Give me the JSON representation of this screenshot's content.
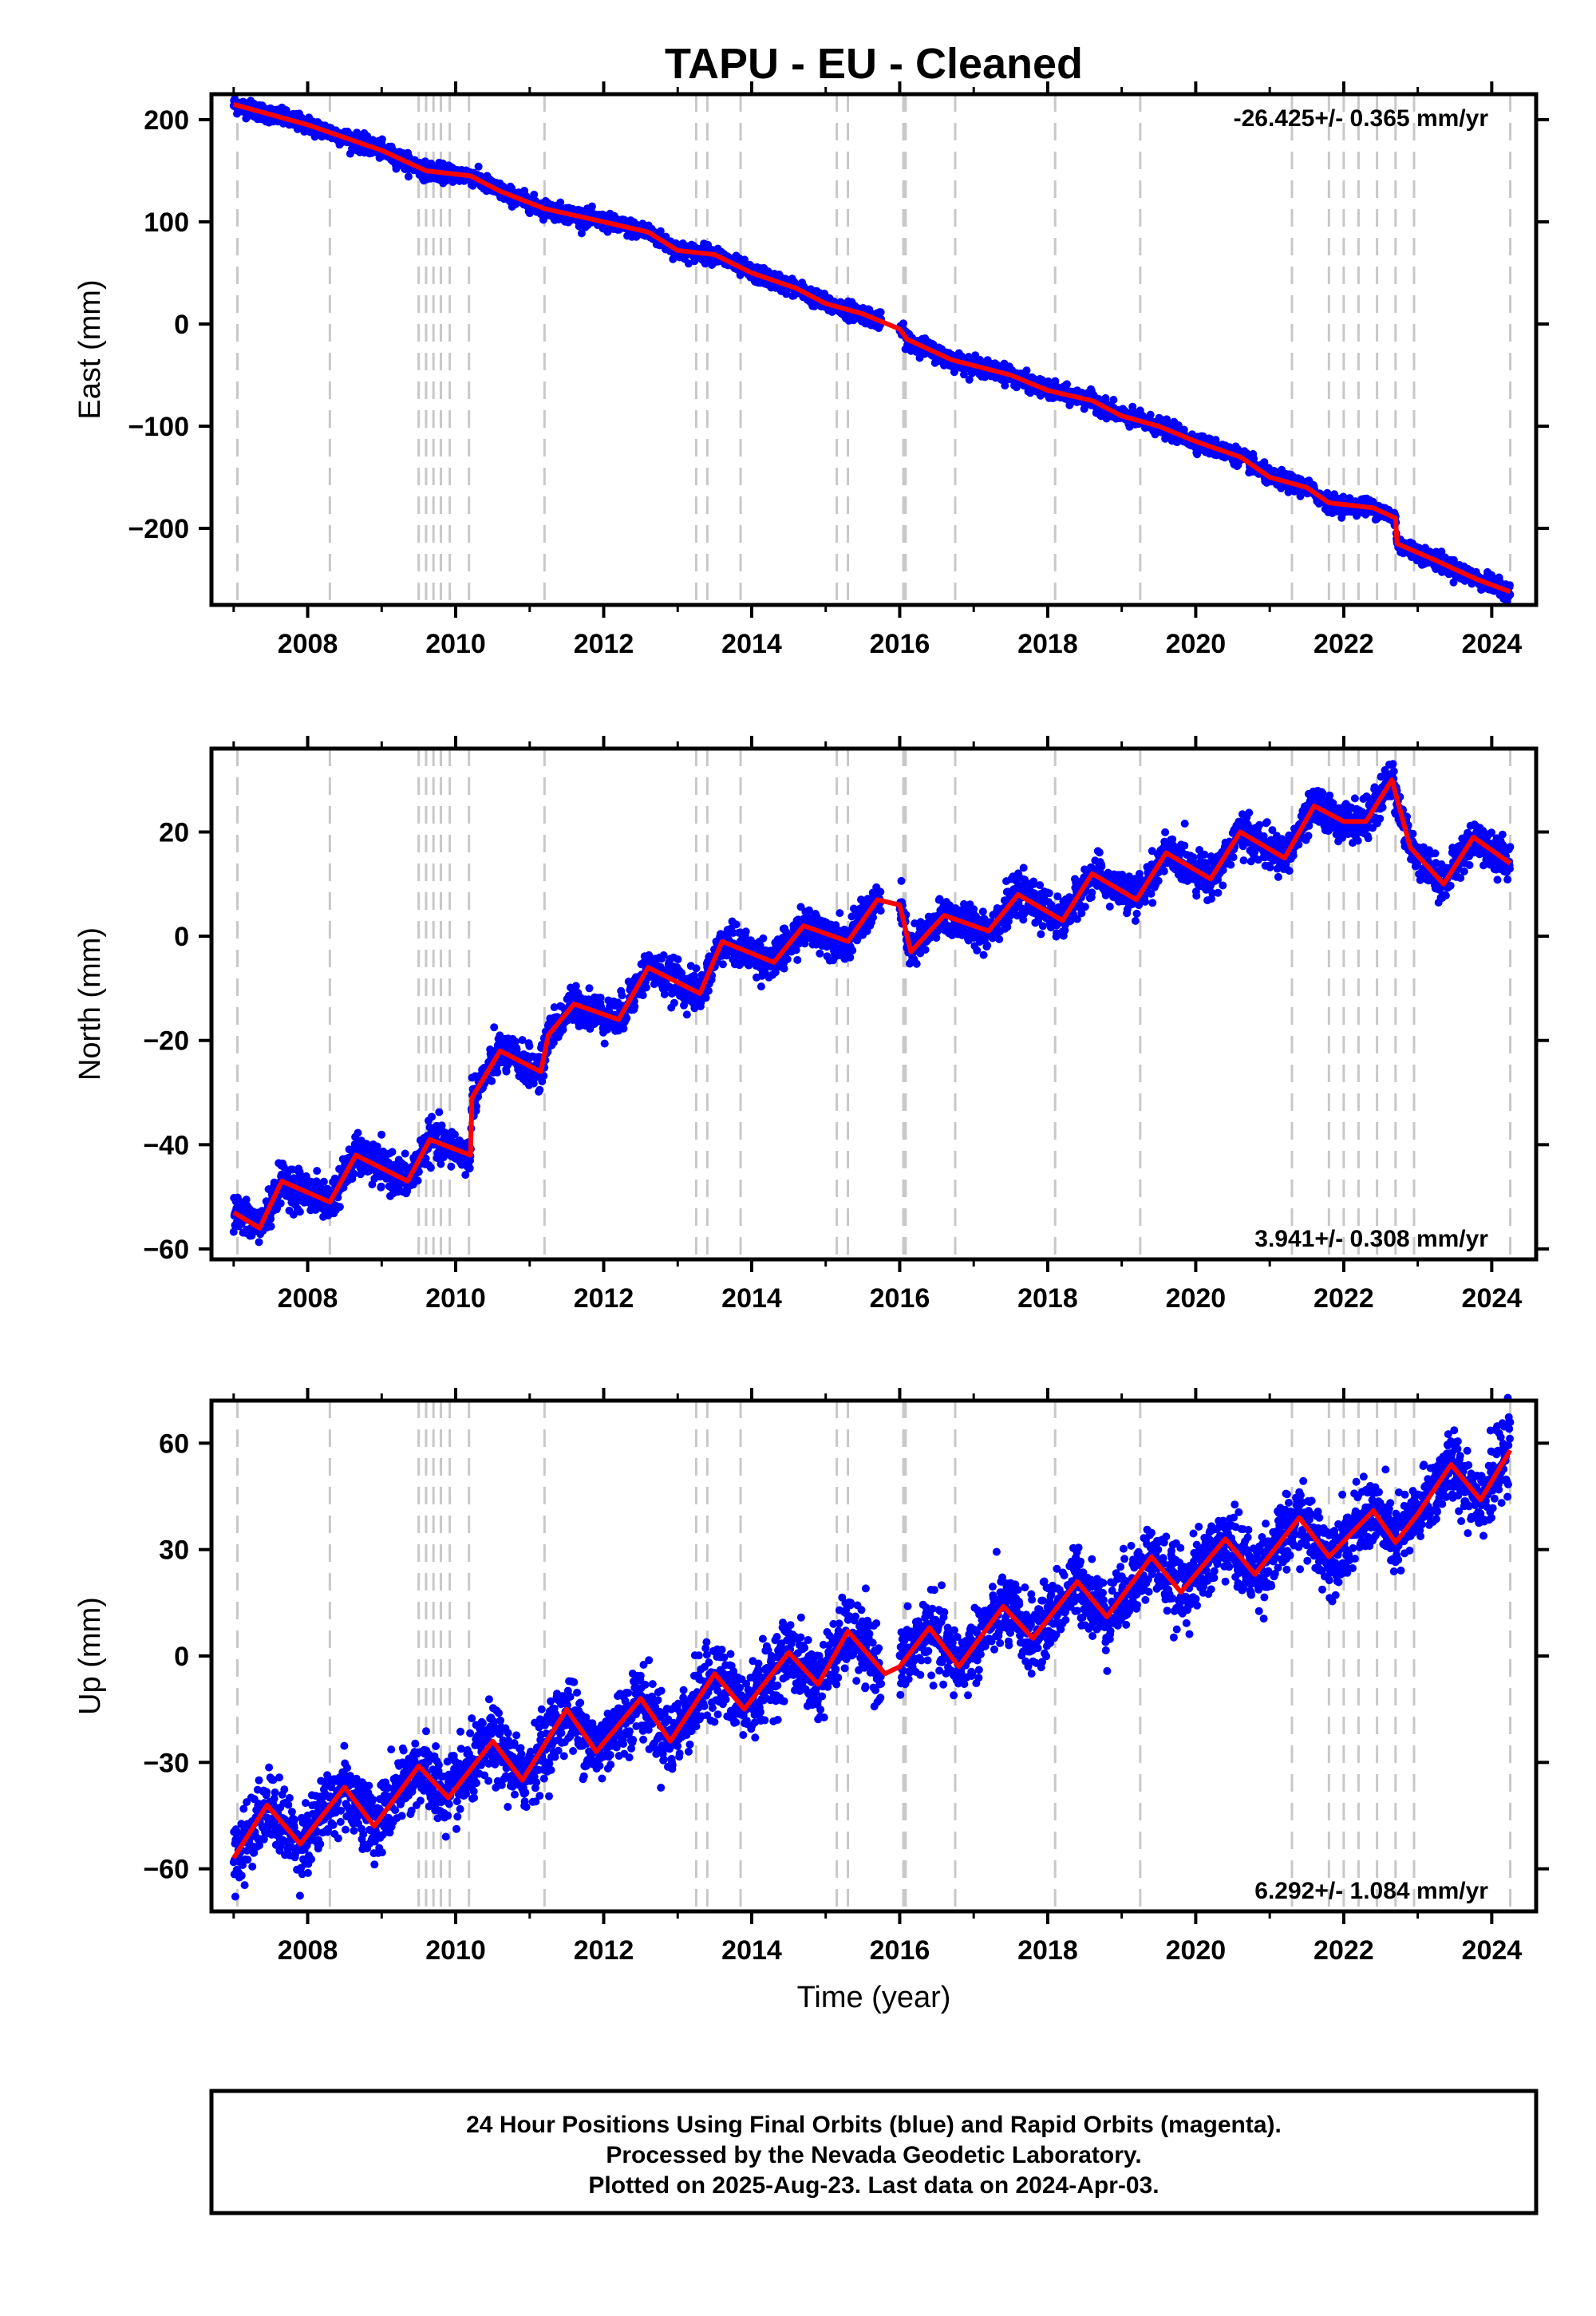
{
  "title": "TAPU  - EU - Cleaned",
  "xlabel": "Time (year)",
  "footer": {
    "line1": "24 Hour Positions Using Final Orbits (blue) and Rapid Orbits (magenta).",
    "line2": "Processed by the Nevada Geodetic Laboratory.",
    "line3": "Plotted on 2025-Aug-23. Last data on 2024-Apr-03."
  },
  "colors": {
    "points": "#0000ff",
    "model": "#ff0000",
    "events": "#c8c8c8",
    "frame": "#000000"
  },
  "chart_data": [
    {
      "type": "scatter",
      "name_component": "East",
      "ylabel": "East (mm)",
      "rate_label": "-26.425+/- 0.365 mm/yr",
      "xlim": [
        2006.7,
        2024.6
      ],
      "ylim": [
        -275,
        225
      ],
      "yticks": [
        -200,
        -100,
        0,
        100,
        200
      ],
      "xticks": [
        2008,
        2010,
        2012,
        2014,
        2016,
        2018,
        2020,
        2022,
        2024
      ],
      "model_series": [
        [
          2007.0,
          215
        ],
        [
          2008.0,
          195
        ],
        [
          2009.0,
          170
        ],
        [
          2009.6,
          150
        ],
        [
          2010.2,
          145
        ],
        [
          2010.6,
          130
        ],
        [
          2011.2,
          113
        ],
        [
          2012.0,
          100
        ],
        [
          2012.6,
          90
        ],
        [
          2013.0,
          72
        ],
        [
          2013.5,
          68
        ],
        [
          2014.0,
          50
        ],
        [
          2014.6,
          35
        ],
        [
          2015.0,
          20
        ],
        [
          2015.5,
          10
        ],
        [
          2016.0,
          -5
        ],
        [
          2016.1,
          -15
        ],
        [
          2016.7,
          -35
        ],
        [
          2017.5,
          -50
        ],
        [
          2018.0,
          -65
        ],
        [
          2018.6,
          -75
        ],
        [
          2019.0,
          -90
        ],
        [
          2019.5,
          -100
        ],
        [
          2020.0,
          -115
        ],
        [
          2020.6,
          -130
        ],
        [
          2021.0,
          -150
        ],
        [
          2021.5,
          -160
        ],
        [
          2021.8,
          -175
        ],
        [
          2022.4,
          -180
        ],
        [
          2022.7,
          -190
        ],
        [
          2022.72,
          -215
        ],
        [
          2023.2,
          -230
        ],
        [
          2023.8,
          -250
        ],
        [
          2024.25,
          -262
        ]
      ],
      "scatter_noise": 4
    },
    {
      "type": "scatter",
      "name_component": "North",
      "ylabel": "North (mm)",
      "rate_label": "3.941+/- 0.308 mm/yr",
      "xlim": [
        2006.7,
        2024.6
      ],
      "ylim": [
        -62,
        36
      ],
      "yticks": [
        -60,
        -40,
        -20,
        0,
        20
      ],
      "xticks": [
        2008,
        2010,
        2012,
        2014,
        2016,
        2018,
        2020,
        2022,
        2024
      ],
      "model_series": [
        [
          2007.0,
          -53
        ],
        [
          2007.35,
          -56
        ],
        [
          2007.65,
          -47
        ],
        [
          2008.3,
          -51
        ],
        [
          2008.65,
          -42
        ],
        [
          2009.35,
          -47
        ],
        [
          2009.65,
          -39
        ],
        [
          2010.2,
          -42
        ],
        [
          2010.22,
          -31
        ],
        [
          2010.6,
          -22
        ],
        [
          2011.15,
          -26
        ],
        [
          2011.25,
          -19
        ],
        [
          2011.6,
          -13
        ],
        [
          2012.2,
          -16
        ],
        [
          2012.6,
          -6
        ],
        [
          2013.3,
          -11
        ],
        [
          2013.6,
          -1
        ],
        [
          2014.3,
          -5
        ],
        [
          2014.7,
          2
        ],
        [
          2015.3,
          -1
        ],
        [
          2015.7,
          7
        ],
        [
          2016.0,
          6
        ],
        [
          2016.15,
          -3
        ],
        [
          2016.6,
          4
        ],
        [
          2017.2,
          1
        ],
        [
          2017.6,
          8
        ],
        [
          2018.2,
          3
        ],
        [
          2018.6,
          12
        ],
        [
          2019.2,
          7
        ],
        [
          2019.6,
          16
        ],
        [
          2020.2,
          11
        ],
        [
          2020.6,
          20
        ],
        [
          2021.2,
          15
        ],
        [
          2021.6,
          25
        ],
        [
          2022.0,
          22
        ],
        [
          2022.3,
          22
        ],
        [
          2022.65,
          30
        ],
        [
          2022.9,
          17
        ],
        [
          2023.35,
          10
        ],
        [
          2023.75,
          19
        ],
        [
          2024.25,
          14
        ]
      ],
      "scatter_noise": 1.8
    },
    {
      "type": "scatter",
      "name_component": "Up",
      "ylabel": "Up (mm)",
      "rate_label": "6.292+/- 1.084 mm/yr",
      "xlim": [
        2006.7,
        2024.6
      ],
      "ylim": [
        -72,
        72
      ],
      "yticks": [
        -60,
        -30,
        0,
        30,
        60
      ],
      "xticks": [
        2008,
        2010,
        2012,
        2014,
        2016,
        2018,
        2020,
        2022,
        2024
      ],
      "model_series": [
        [
          2007.0,
          -57
        ],
        [
          2007.45,
          -42
        ],
        [
          2007.9,
          -53
        ],
        [
          2008.5,
          -37
        ],
        [
          2008.9,
          -48
        ],
        [
          2009.5,
          -31
        ],
        [
          2009.9,
          -40
        ],
        [
          2010.5,
          -24
        ],
        [
          2010.9,
          -35
        ],
        [
          2011.5,
          -15
        ],
        [
          2011.9,
          -27
        ],
        [
          2012.5,
          -12
        ],
        [
          2012.9,
          -24
        ],
        [
          2013.5,
          -5
        ],
        [
          2013.9,
          -15
        ],
        [
          2014.5,
          1
        ],
        [
          2014.9,
          -8
        ],
        [
          2015.3,
          7
        ],
        [
          2015.8,
          -5
        ],
        [
          2016.0,
          -3
        ],
        [
          2016.4,
          8
        ],
        [
          2016.8,
          -3
        ],
        [
          2017.4,
          14
        ],
        [
          2017.8,
          5
        ],
        [
          2018.4,
          21
        ],
        [
          2018.8,
          11
        ],
        [
          2019.4,
          28
        ],
        [
          2019.8,
          18
        ],
        [
          2020.4,
          33
        ],
        [
          2020.8,
          23
        ],
        [
          2021.4,
          39
        ],
        [
          2021.8,
          28
        ],
        [
          2022.4,
          41
        ],
        [
          2022.7,
          32
        ],
        [
          2023.0,
          40
        ],
        [
          2023.45,
          54
        ],
        [
          2023.85,
          44
        ],
        [
          2024.25,
          58
        ]
      ],
      "scatter_noise": 5
    }
  ],
  "event_lines": [
    2007.05,
    2008.3,
    2009.5,
    2009.6,
    2009.7,
    2009.8,
    2009.92,
    2010.18,
    2011.2,
    2013.25,
    2013.4,
    2013.85,
    2015.15,
    2015.3,
    2016.05,
    2016.08,
    2016.75,
    2018.1,
    2019.25,
    2021.3,
    2021.8,
    2022.0,
    2022.2,
    2022.45,
    2022.7,
    2022.95,
    2024.25
  ]
}
